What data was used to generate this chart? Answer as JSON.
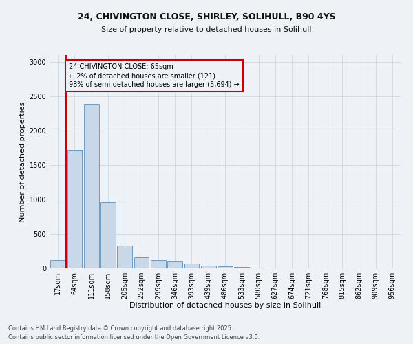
{
  "title_line1": "24, CHIVINGTON CLOSE, SHIRLEY, SOLIHULL, B90 4YS",
  "title_line2": "Size of property relative to detached houses in Solihull",
  "xlabel": "Distribution of detached houses by size in Solihull",
  "ylabel": "Number of detached properties",
  "footnote1": "Contains HM Land Registry data © Crown copyright and database right 2025.",
  "footnote2": "Contains public sector information licensed under the Open Government Licence v3.0.",
  "bar_color": "#c8d8e8",
  "bar_edge_color": "#6090b8",
  "annotation_box_color": "#cc0000",
  "vline_color": "#cc0000",
  "background_color": "#eef2f7",
  "categories": [
    "17sqm",
    "64sqm",
    "111sqm",
    "158sqm",
    "205sqm",
    "252sqm",
    "299sqm",
    "346sqm",
    "393sqm",
    "439sqm",
    "486sqm",
    "533sqm",
    "580sqm",
    "627sqm",
    "674sqm",
    "721sqm",
    "768sqm",
    "815sqm",
    "862sqm",
    "909sqm",
    "956sqm"
  ],
  "values": [
    120,
    1720,
    2390,
    960,
    330,
    160,
    120,
    100,
    70,
    40,
    30,
    20,
    10,
    3,
    2,
    1,
    1,
    0,
    0,
    0,
    0
  ],
  "ylim": [
    0,
    3100
  ],
  "yticks": [
    0,
    500,
    1000,
    1500,
    2000,
    2500,
    3000
  ],
  "vline_x": 0.5,
  "annotation_text": "24 CHIVINGTON CLOSE: 65sqm\n← 2% of detached houses are smaller (121)\n98% of semi-detached houses are larger (5,694) →",
  "grid_color": "#d0d8e0",
  "title_fontsize": 9,
  "subtitle_fontsize": 8,
  "xlabel_fontsize": 8,
  "ylabel_fontsize": 8,
  "tick_fontsize": 7,
  "footnote_fontsize": 6,
  "annot_fontsize": 7
}
